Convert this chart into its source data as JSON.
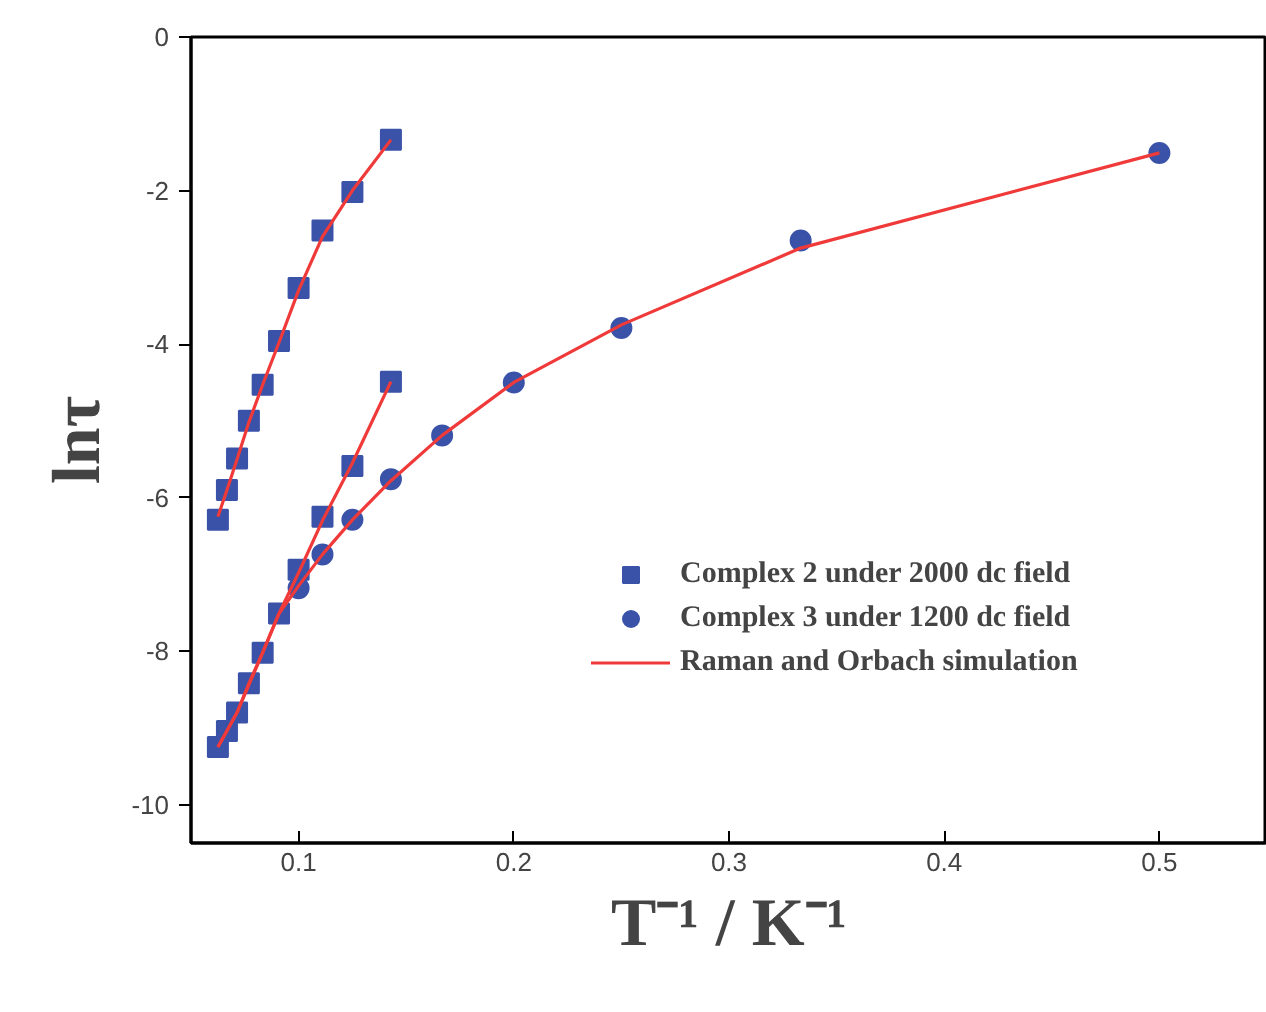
{
  "chart_data": {
    "type": "scatter",
    "xlabel": "T⁻¹ / K⁻¹",
    "ylabel": "lnτ",
    "xlim": [
      0.05,
      0.55
    ],
    "ylim": [
      -10.5,
      0
    ],
    "xticks": [
      0.1,
      0.2,
      0.3,
      0.4,
      0.5
    ],
    "yticks": [
      0,
      -2,
      -4,
      -6,
      -8,
      -10
    ],
    "grid": false,
    "legend": "right",
    "series": [
      {
        "name": "Complex 2 under 2000 dc field",
        "color": "#3a52a8",
        "marker": "square",
        "x": [
          0.0625,
          0.0667,
          0.0714,
          0.0769,
          0.0833,
          0.0909,
          0.1,
          0.1111,
          0.125,
          0.1429
        ],
        "values": [
          -6.29,
          -5.9,
          -5.49,
          -5.0,
          -4.53,
          -3.96,
          -3.27,
          -2.52,
          -2.02,
          -1.34
        ]
      },
      {
        "color": "#3a52a8",
        "marker": "square",
        "x": [
          0.0625,
          0.0667,
          0.0714,
          0.0769,
          0.0833,
          0.0909,
          0.1,
          0.1111,
          0.125,
          0.1429
        ],
        "values": [
          -9.25,
          -9.04,
          -8.8,
          -8.42,
          -8.02,
          -7.51,
          -6.94,
          -6.25,
          -5.59,
          -4.49
        ]
      },
      {
        "name": "Complex 3 under 1200 dc field",
        "color": "#3a52a8",
        "marker": "circle",
        "x": [
          0.1,
          0.1111,
          0.125,
          0.1429,
          0.1667,
          0.2,
          0.25,
          0.3333,
          0.5
        ],
        "values": [
          -7.18,
          -6.74,
          -6.29,
          -5.76,
          -5.19,
          -4.5,
          -3.79,
          -2.65,
          -1.51
        ]
      },
      {
        "name": "Raman and Orbach simulation",
        "type": "line",
        "color": "#f03a3a",
        "x": [
          0.0625,
          0.0667,
          0.0714,
          0.0769,
          0.0833,
          0.0909,
          0.1,
          0.1111,
          0.125,
          0.1429
        ],
        "values": [
          -6.25,
          -5.9,
          -5.5,
          -5.02,
          -4.53,
          -3.98,
          -3.3,
          -2.6,
          -2.0,
          -1.34
        ]
      },
      {
        "type": "line",
        "color": "#f03a3a",
        "x": [
          0.0625,
          0.0667,
          0.0714,
          0.0769,
          0.0833,
          0.0909,
          0.1,
          0.1111,
          0.125,
          0.1429
        ],
        "values": [
          -9.25,
          -9.04,
          -8.8,
          -8.42,
          -8.02,
          -7.51,
          -6.98,
          -6.3,
          -5.55,
          -4.49
        ]
      },
      {
        "type": "line",
        "color": "#f03a3a",
        "x": [
          0.0625,
          0.0714,
          0.0833,
          0.0909,
          0.1,
          0.1111,
          0.125,
          0.1429,
          0.1667,
          0.2,
          0.25,
          0.3333,
          0.5
        ],
        "values": [
          -9.25,
          -8.8,
          -8.02,
          -7.51,
          -7.15,
          -6.74,
          -6.29,
          -5.78,
          -5.19,
          -4.5,
          -3.75,
          -2.75,
          -1.51
        ]
      }
    ]
  }
}
